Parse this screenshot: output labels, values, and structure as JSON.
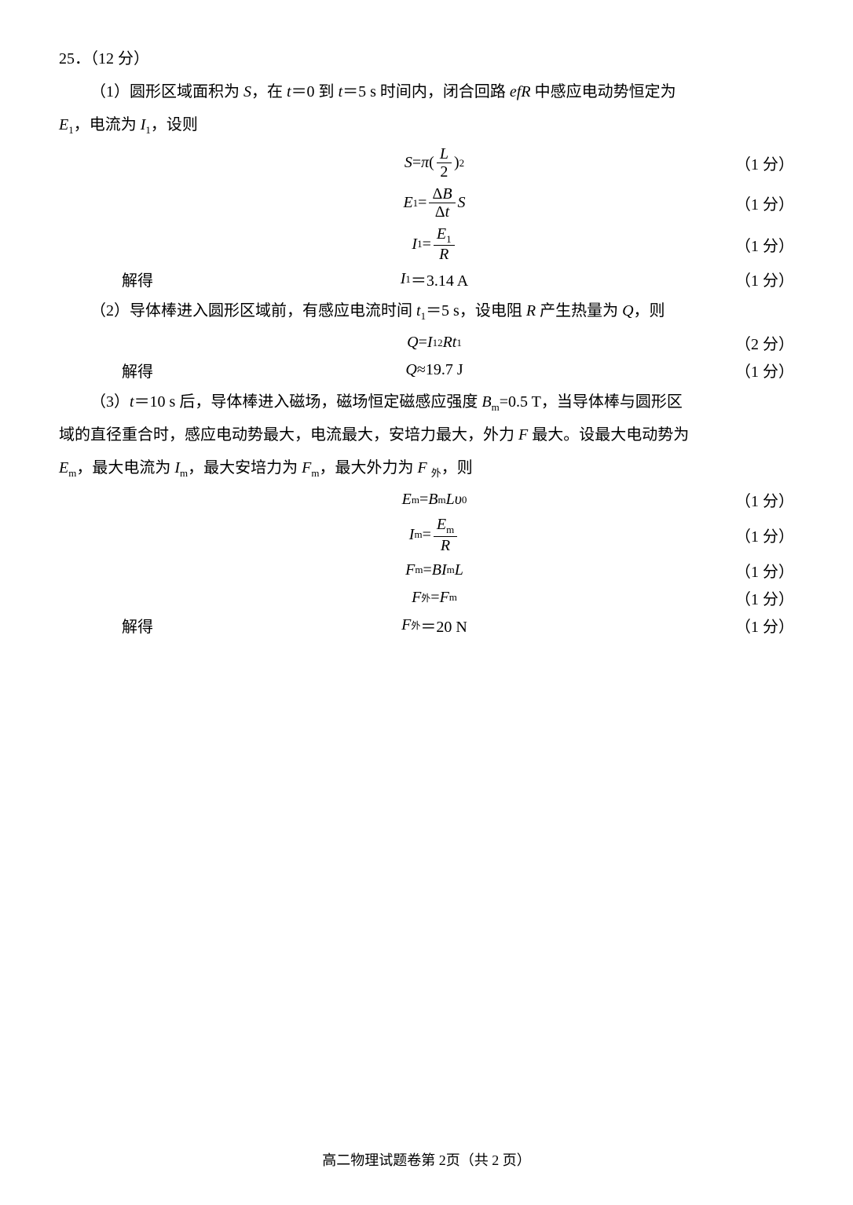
{
  "problem_header": "25．（12 分）",
  "part1_text": "（1）圆形区域面积为 ",
  "part1_text2": "，在 ",
  "part1_text3": "＝0 到 ",
  "part1_text4": "＝5 s 时间内，闭合回路 ",
  "part1_text5": " 中感应电动势恒定为",
  "part1_line2a": "，电流为 ",
  "part1_line2b": "，设则",
  "sym_S": "S",
  "sym_t": "t",
  "sym_efR": "efR",
  "sym_E1": "E",
  "sym_I1": "I",
  "sub_1": "1",
  "score1": "（1 分）",
  "score2": "（2 分）",
  "solve_label": "解得",
  "eq_S_lhs": "S",
  "eq_S_eq": " = ",
  "eq_S_pi": "π",
  "eq_S_num": "L",
  "eq_S_den": "2",
  "eq_S_exp": "2",
  "eq_E1_lhs": "E",
  "eq_E1_eq": " = ",
  "eq_E1_num": "ΔB",
  "eq_E1_den": "Δt",
  "eq_E1_rhs": " S",
  "eq_I1_lhs": "I",
  "eq_I1_num": "E",
  "eq_I1_den": "R",
  "I1_result": "＝3.14 A",
  "part2_text": "（2）导体棒进入圆形区域前，有感应电流时间 ",
  "part2_text2": "＝5 s，设电阻 ",
  "part2_text3": " 产生热量为 ",
  "part2_text4": "，则",
  "sym_R": "R",
  "sym_Q": "Q",
  "eq_Q_lhs": "Q",
  "eq_Q_eq": " = ",
  "eq_Q_I": "I",
  "eq_Q_R": "R",
  "eq_Q_t": "t",
  "Q_result_lhs": "Q",
  "Q_result": "≈19.7 J",
  "part3_text1": "（3）",
  "part3_text2": "＝10 s 后，导体棒进入磁场，磁场恒定磁感应强度 ",
  "part3_text3": "=0.5 T，当导体棒与圆形区",
  "part3_line2": "域的直径重合时，感应电动势最大，电流最大，安培力最大，外力 ",
  "part3_line2b": " 最大。设最大电动势为",
  "part3_line3a": "，最大电流为 ",
  "part3_line3b": "，最大安培力为 ",
  "part3_line3c": "，最大外力为 ",
  "part3_line3d": "，则",
  "sym_Bm": "B",
  "sub_m": "m",
  "sym_F": "F",
  "sub_wai": "外",
  "sym_Em": "E",
  "sym_Im": "I",
  "sym_Fm": "F",
  "eq_Em_lhs": "E",
  "eq_Em_eq": " = ",
  "eq_Em_B": "B",
  "eq_Em_L": "L",
  "eq_Em_v": "υ",
  "sub_0": "0",
  "eq_Im_lhs": "I",
  "eq_Im_num": "E",
  "eq_Im_den": "R",
  "eq_Fm_lhs": "F",
  "eq_Fm_eq": " = ",
  "eq_Fm_B": "B",
  "eq_Fm_I": "I",
  "eq_Fm_L": "L",
  "eq_Fwai_lhs": "F",
  "eq_Fwai_eq": "=",
  "eq_Fwai_rhs": "F",
  "Fwai_result_lhs": "F ",
  "Fwai_result": "＝20 N",
  "footer_text": "高二物理试题卷第 2页（共 2 页）"
}
